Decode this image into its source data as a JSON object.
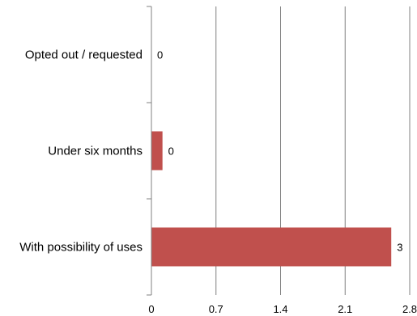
{
  "chart_data": {
    "type": "bar",
    "orientation": "horizontal",
    "title": "",
    "xlabel": "",
    "ylabel": "",
    "categories": [
      "Opted out / requested",
      "Under six months",
      "With possibility of uses"
    ],
    "values": [
      0,
      0.12,
      2.6
    ],
    "data_labels": [
      "0",
      "0",
      "3"
    ],
    "xlim": [
      0,
      2.8
    ],
    "x_ticks": [
      "0",
      "0.7",
      "1.4",
      "2.1",
      "2.8"
    ],
    "grid": "vertical",
    "legend": "none",
    "bar_color": "#c0504d"
  }
}
